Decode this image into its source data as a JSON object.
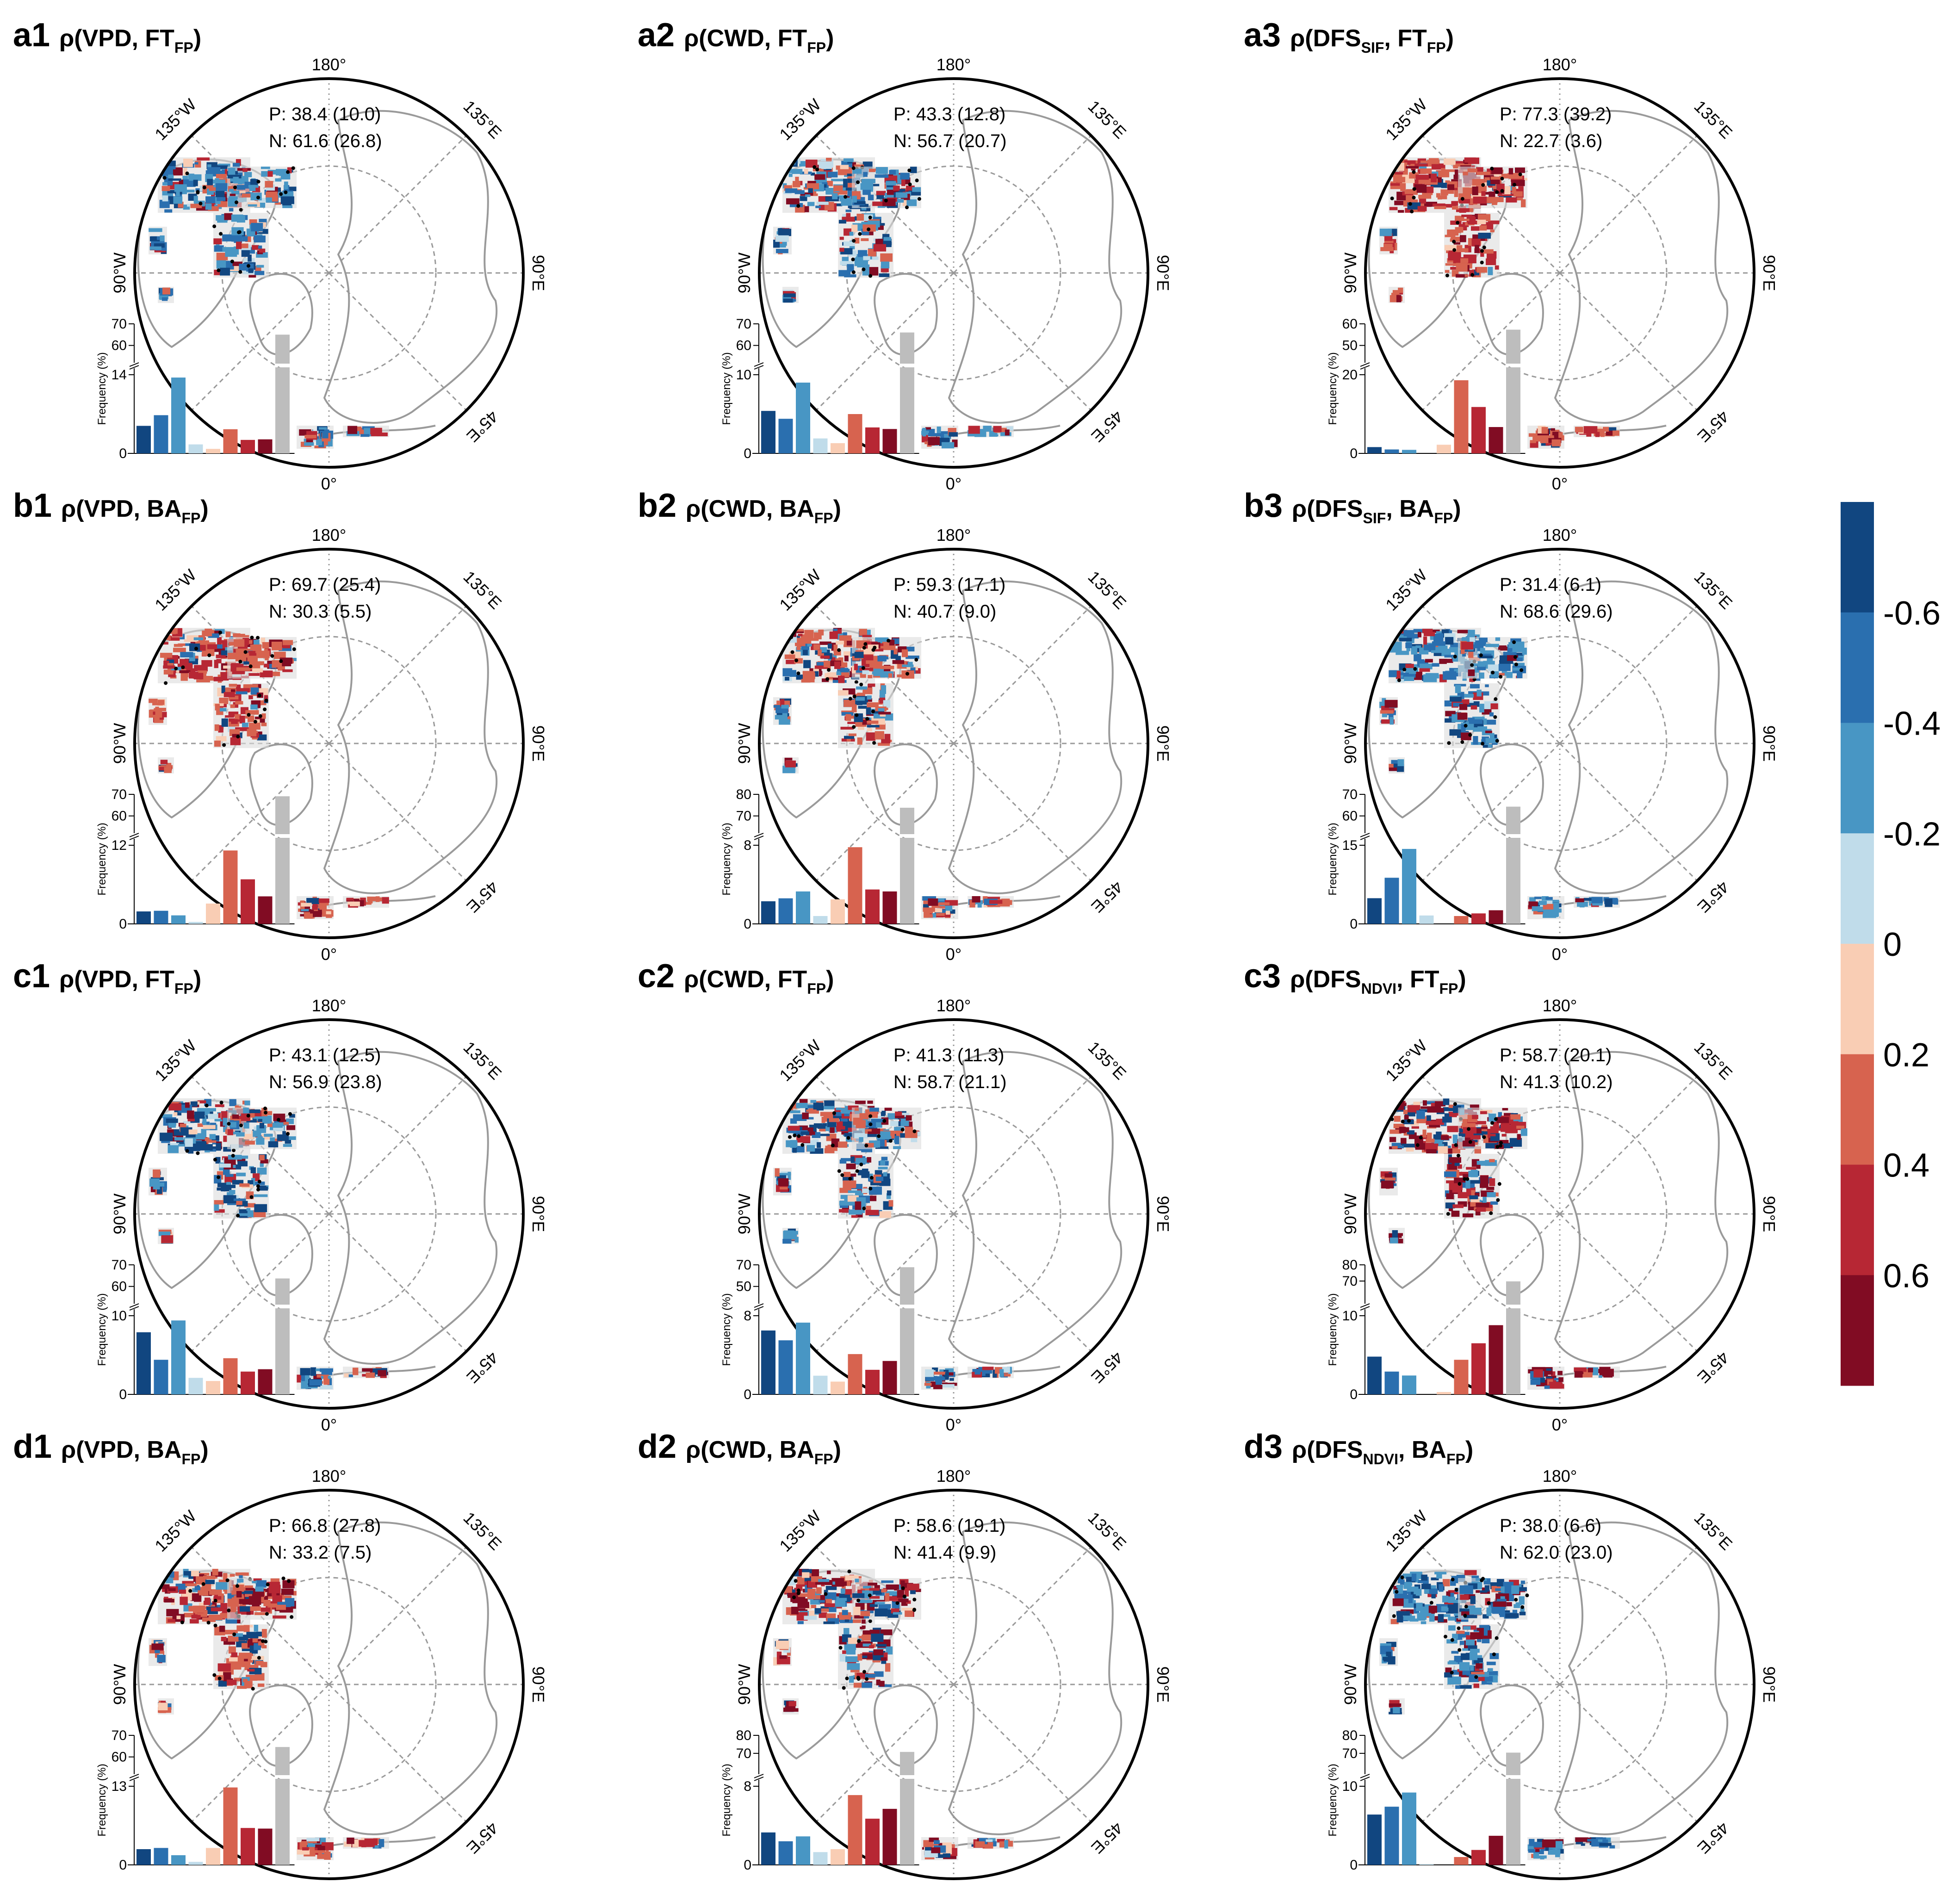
{
  "figure": {
    "colorbar": {
      "colors": [
        "#114680",
        "#2a6faf",
        "#4896c4",
        "#c0dcea",
        "#f9cdb4",
        "#d7634f",
        "#b72734",
        "#810c23"
      ],
      "tick_labels": [
        "-0.6",
        "-0.4",
        "-0.2",
        "0",
        "0.2",
        "0.4",
        "0.6"
      ],
      "gray_color": "#bdbdbd"
    },
    "map_labels": {
      "top": "180°",
      "left_top": "135°W",
      "right_top": "135°E",
      "left": "90°W",
      "right": "90°E",
      "right_bottom": "45°E",
      "bottom": "0°"
    },
    "hist_ylabel": "Frequency (%)"
  },
  "chart_data": [
    {
      "panel": "a1",
      "type": "bar",
      "title": {
        "rho": "ρ(",
        "var1": "VPD",
        "sub1": "",
        "var2": ", FT",
        "sub2": "FP",
        "close": ")"
      },
      "stats": {
        "P": "P: 38.4 (10.0)",
        "N": "N: 61.6 (26.8)"
      },
      "values": [
        4.9,
        6.8,
        13.5,
        1.6,
        0.8,
        4.3,
        2.4,
        2.5
      ],
      "gray": 65.0,
      "ylow_ticks": [
        0,
        14
      ],
      "yhigh_ticks": [
        60,
        70
      ],
      "ylow_max": 14,
      "yhigh_range": [
        55,
        70
      ]
    },
    {
      "panel": "a2",
      "type": "bar",
      "title": {
        "rho": "ρ(",
        "var1": "CWD",
        "sub1": "",
        "var2": ", FT",
        "sub2": "FP",
        "close": ")"
      },
      "stats": {
        "P": "P: 43.3 (12.8)",
        "N": "N: 56.7 (20.7)"
      },
      "values": [
        5.4,
        4.4,
        9.0,
        1.9,
        1.3,
        5.0,
        3.3,
        3.1
      ],
      "gray": 66.0,
      "ylow_ticks": [
        0,
        10
      ],
      "yhigh_ticks": [
        60,
        70
      ],
      "ylow_max": 10,
      "yhigh_range": [
        55,
        70
      ]
    },
    {
      "panel": "a3",
      "type": "bar",
      "title": {
        "rho": "ρ(",
        "var1": "DFS",
        "sub1": "SIF",
        "var2": ", FT",
        "sub2": "FP",
        "close": ")"
      },
      "stats": {
        "P": "P: 77.3 (39.2)",
        "N": "N: 22.7 (3.6)"
      },
      "values": [
        1.6,
        1.0,
        0.9,
        0.0,
        2.2,
        18.6,
        11.8,
        6.7
      ],
      "gray": 57.3,
      "ylow_ticks": [
        0,
        20
      ],
      "yhigh_ticks": [
        50,
        60
      ],
      "ylow_max": 20,
      "yhigh_range": [
        45,
        60
      ]
    },
    {
      "panel": "b1",
      "type": "bar",
      "title": {
        "rho": "ρ(",
        "var1": "VPD",
        "sub1": "",
        "var2": ", BA",
        "sub2": "FP",
        "close": ")"
      },
      "stats": {
        "P": "P: 69.7 (25.4)",
        "N": "N: 30.3 (5.5)"
      },
      "values": [
        1.9,
        2.0,
        1.3,
        0.3,
        3.1,
        11.2,
        6.8,
        4.2
      ],
      "gray": 69.1,
      "ylow_ticks": [
        0,
        12
      ],
      "yhigh_ticks": [
        60,
        70
      ],
      "ylow_max": 12,
      "yhigh_range": [
        55,
        70
      ]
    },
    {
      "panel": "b2",
      "type": "bar",
      "title": {
        "rho": "ρ(",
        "var1": "CWD",
        "sub1": "",
        "var2": ", BA",
        "sub2": "FP",
        "close": ")"
      },
      "stats": {
        "P": "P: 59.3 (17.1)",
        "N": "N: 40.7 (9.0)"
      },
      "values": [
        2.3,
        2.6,
        3.3,
        0.8,
        2.5,
        7.8,
        3.5,
        3.3
      ],
      "gray": 73.8,
      "ylow_ticks": [
        0,
        8
      ],
      "yhigh_ticks": [
        70,
        80
      ],
      "ylow_max": 8,
      "yhigh_range": [
        65,
        80
      ]
    },
    {
      "panel": "b3",
      "type": "bar",
      "title": {
        "rho": "ρ(",
        "var1": "DFS",
        "sub1": "SIF",
        "var2": ", BA",
        "sub2": "FP",
        "close": ")"
      },
      "stats": {
        "P": "P: 31.4 (6.1)",
        "N": "N: 68.6 (29.6)"
      },
      "values": [
        4.9,
        8.8,
        14.3,
        1.6,
        0.0,
        1.5,
        2.0,
        2.6
      ],
      "gray": 64.3,
      "ylow_ticks": [
        0,
        15
      ],
      "yhigh_ticks": [
        60,
        70
      ],
      "ylow_max": 15,
      "yhigh_range": [
        55,
        70
      ]
    },
    {
      "panel": "c1",
      "type": "bar",
      "title": {
        "rho": "ρ(",
        "var1": "VPD",
        "sub1": "",
        "var2": ", FT",
        "sub2": "FP",
        "close": ")"
      },
      "stats": {
        "P": "P: 43.1 (12.5)",
        "N": "N: 56.9 (23.8)"
      },
      "values": [
        7.9,
        4.4,
        9.4,
        2.1,
        1.7,
        4.6,
        2.9,
        3.2
      ],
      "gray": 63.7,
      "ylow_ticks": [
        0,
        10
      ],
      "yhigh_ticks": [
        60,
        70
      ],
      "ylow_max": 10,
      "yhigh_range": [
        55,
        70
      ]
    },
    {
      "panel": "c2",
      "type": "bar",
      "title": {
        "rho": "ρ(",
        "var1": "CWD",
        "sub1": "",
        "var2": ", FT",
        "sub2": "FP",
        "close": ")"
      },
      "stats": {
        "P": "P: 41.3 (11.3)",
        "N": "N: 58.7 (21.1)"
      },
      "values": [
        6.5,
        5.5,
        7.3,
        1.9,
        1.3,
        4.1,
        2.5,
        3.4
      ],
      "gray": 67.8,
      "ylow_ticks": [
        0,
        8
      ],
      "yhigh_ticks": [
        50,
        70
      ],
      "ylow_max": 8,
      "yhigh_range": [
        40,
        70
      ]
    },
    {
      "panel": "c3",
      "type": "bar",
      "title": {
        "rho": "ρ(",
        "var1": "DFS",
        "sub1": "NDVI",
        "var2": ", FT",
        "sub2": "FP",
        "close": ")"
      },
      "stats": {
        "P": "P: 58.7 (20.1)",
        "N": "N: 41.3 (10.2)"
      },
      "values": [
        4.8,
        2.9,
        2.4,
        0.0,
        0.3,
        4.4,
        6.5,
        8.8
      ],
      "gray": 69.8,
      "ylow_ticks": [
        0,
        10
      ],
      "yhigh_ticks": [
        70,
        80
      ],
      "ylow_max": 10,
      "yhigh_range": [
        60,
        80
      ]
    },
    {
      "panel": "d1",
      "type": "bar",
      "title": {
        "rho": "ρ(",
        "var1": "VPD",
        "sub1": "",
        "var2": ", BA",
        "sub2": "FP",
        "close": ")"
      },
      "stats": {
        "P": "P: 66.8 (27.8)",
        "N": "N: 33.2 (7.5)"
      },
      "values": [
        2.6,
        2.8,
        1.6,
        0.5,
        2.8,
        12.8,
        6.1,
        6.0
      ],
      "gray": 64.6,
      "ylow_ticks": [
        0,
        13
      ],
      "yhigh_ticks": [
        60,
        70
      ],
      "ylow_max": 13,
      "yhigh_range": [
        55,
        70
      ]
    },
    {
      "panel": "d2",
      "type": "bar",
      "title": {
        "rho": "ρ(",
        "var1": "CWD",
        "sub1": "",
        "var2": ", BA",
        "sub2": "FP",
        "close": ")"
      },
      "stats": {
        "P": "P: 58.6 (19.1)",
        "N": "N: 41.4 (9.9)"
      },
      "values": [
        3.3,
        2.4,
        2.9,
        1.3,
        1.6,
        7.1,
        4.7,
        5.7
      ],
      "gray": 70.8,
      "ylow_ticks": [
        0,
        8
      ],
      "yhigh_ticks": [
        70,
        80
      ],
      "ylow_max": 8,
      "yhigh_range": [
        62,
        80
      ]
    },
    {
      "panel": "d3",
      "type": "bar",
      "title": {
        "rho": "ρ(",
        "var1": "DFS",
        "sub1": "NDVI",
        "var2": ", BA",
        "sub2": "FP",
        "close": ")"
      },
      "stats": {
        "P": "P: 38.0 (6.6)",
        "N": "N: 62.0 (23.0)"
      },
      "values": [
        6.4,
        7.4,
        9.2,
        0.1,
        0.0,
        1.0,
        1.9,
        3.7
      ],
      "gray": 70.4,
      "ylow_ticks": [
        0,
        10
      ],
      "yhigh_ticks": [
        70,
        80
      ],
      "ylow_max": 10,
      "yhigh_range": [
        62,
        80
      ]
    }
  ]
}
